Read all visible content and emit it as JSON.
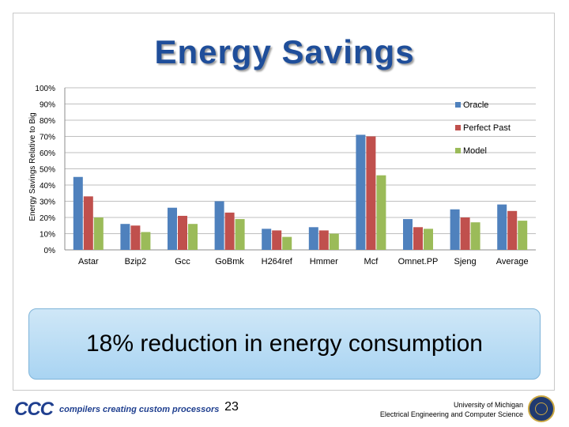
{
  "slide": {
    "title": "Energy Savings",
    "callout": "18% reduction in energy consumption",
    "page_number": "23",
    "footer": {
      "logo_text": "CCC",
      "logo_tagline": "compilers creating custom processors",
      "university_line1": "University of Michigan",
      "university_line2": "Electrical Engineering and Computer Science"
    }
  },
  "chart_data": {
    "type": "bar",
    "title": "",
    "xlabel": "",
    "ylabel": "Energy Savings Relative to Big",
    "ylim": [
      0,
      100
    ],
    "yticks": [
      "0%",
      "10%",
      "20%",
      "30%",
      "40%",
      "50%",
      "60%",
      "70%",
      "80%",
      "90%",
      "100%"
    ],
    "grid": true,
    "legend_position": "right",
    "categories": [
      "Astar",
      "Bzip2",
      "Gcc",
      "GoBmk",
      "H264ref",
      "Hmmer",
      "Mcf",
      "Omnet.PP",
      "Sjeng",
      "Average"
    ],
    "series": [
      {
        "name": "Oracle",
        "color": "#4f81bd",
        "values": [
          45,
          16,
          26,
          30,
          13,
          14,
          71,
          19,
          25,
          28
        ]
      },
      {
        "name": "Perfect Past",
        "color": "#c0504d",
        "values": [
          33,
          15,
          21,
          23,
          12,
          12,
          70,
          14,
          20,
          24
        ]
      },
      {
        "name": "Model",
        "color": "#9bbb59",
        "values": [
          20,
          11,
          16,
          19,
          8,
          10,
          46,
          13,
          17,
          18
        ]
      }
    ]
  }
}
